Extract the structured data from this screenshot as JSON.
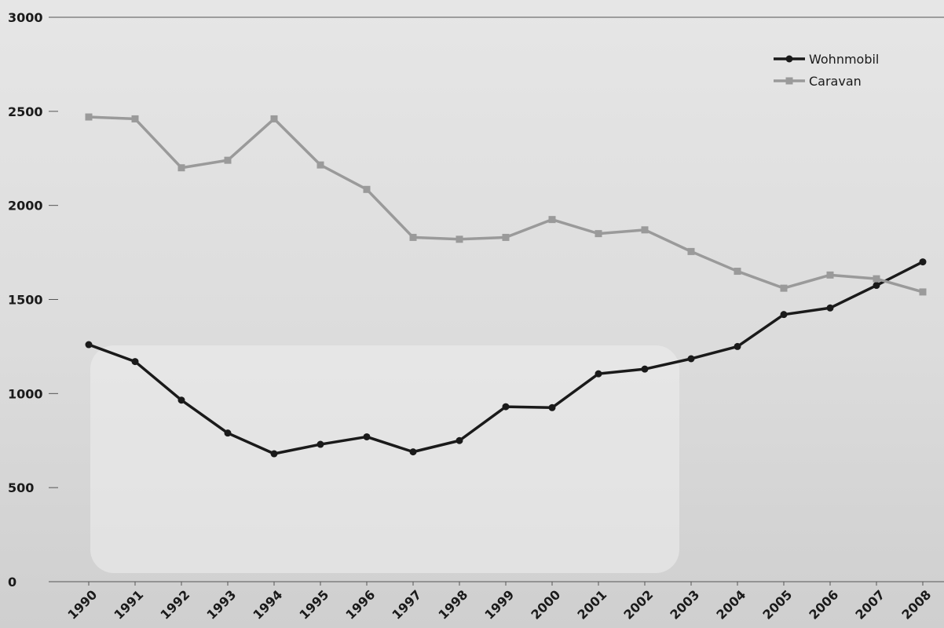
{
  "chart_data": {
    "type": "line",
    "categories": [
      "1990",
      "1991",
      "1992",
      "1993",
      "1994",
      "1995",
      "1996",
      "1997",
      "1998",
      "1999",
      "2000",
      "2001",
      "2002",
      "2003",
      "2004",
      "2005",
      "2006",
      "2007",
      "2008"
    ],
    "series": [
      {
        "name": "Wohnmobil",
        "color": "#1a1a1a",
        "marker": "circle",
        "values": [
          1260,
          1170,
          965,
          790,
          680,
          730,
          770,
          690,
          750,
          930,
          925,
          1105,
          1130,
          1185,
          1250,
          1420,
          1455,
          1575,
          1700
        ]
      },
      {
        "name": "Caravan",
        "color": "#9a9a9a",
        "marker": "square",
        "values": [
          2470,
          2460,
          2200,
          2240,
          2460,
          2215,
          2085,
          1830,
          1820,
          1830,
          1925,
          1850,
          1870,
          1755,
          1650,
          1560,
          1630,
          1610,
          1540
        ]
      }
    ],
    "ylim": [
      0,
      3000
    ],
    "yticks": [
      0,
      500,
      1000,
      1500,
      2000,
      2500,
      3000
    ],
    "legend": "top-right"
  }
}
